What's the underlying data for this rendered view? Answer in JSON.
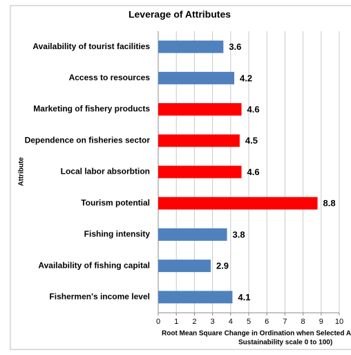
{
  "chart_data": {
    "type": "bar",
    "orientation": "horizontal",
    "title": "Leverage of Attributes",
    "ylabel": "Attribute",
    "xlabel_lines": [
      "Root Mean Square Change in Ordination when Selected Attr",
      "Sustainability scale 0 to 100)"
    ],
    "categories": [
      "Availability of tourist facilities",
      "Access to resources",
      "Marketing of fishery products",
      "Dependence on fisheries sector",
      "Local labor absorbtion",
      "Tourism potential",
      "Fishing intensity",
      "Availability of fishing capital",
      "Fishermen's income level"
    ],
    "values": [
      3.6,
      4.2,
      4.6,
      4.5,
      4.6,
      8.8,
      3.8,
      2.9,
      4.1
    ],
    "colors": [
      "#4f81bd",
      "#4f81bd",
      "#ff0000",
      "#ff0000",
      "#ff0000",
      "#ff0000",
      "#4f81bd",
      "#4f81bd",
      "#4f81bd"
    ],
    "xlim": [
      0,
      10
    ],
    "xticks": [
      0,
      1,
      2,
      3,
      4,
      5,
      6,
      7,
      8,
      9,
      10
    ],
    "grid": true
  }
}
